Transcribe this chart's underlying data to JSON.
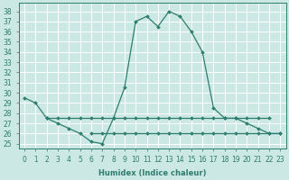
{
  "xlabel": "Humidex (Indice chaleur)",
  "background_color": "#cce8e4",
  "grid_color": "#ffffff",
  "line_color": "#2d7d6e",
  "x_values": [
    0,
    1,
    2,
    3,
    4,
    5,
    6,
    7,
    8,
    9,
    10,
    11,
    12,
    13,
    14,
    15,
    16,
    17,
    18,
    19,
    20,
    21,
    22,
    23
  ],
  "ylim": [
    24.5,
    38.8
  ],
  "xlim": [
    -0.5,
    23.5
  ],
  "yticks": [
    25,
    26,
    27,
    28,
    29,
    30,
    31,
    32,
    33,
    34,
    35,
    36,
    37,
    38
  ],
  "xticks": [
    0,
    1,
    2,
    3,
    4,
    5,
    6,
    7,
    8,
    9,
    10,
    11,
    12,
    13,
    14,
    15,
    16,
    17,
    18,
    19,
    20,
    21,
    22,
    23
  ],
  "series_main": [
    29.5,
    29.0,
    27.5,
    27.0,
    26.5,
    26.0,
    25.2,
    25.0,
    27.5,
    30.5,
    37.0,
    37.5,
    36.5,
    38.0,
    37.5,
    36.0,
    34.0,
    28.5,
    27.5,
    27.5,
    27.0,
    26.5,
    26.0,
    26.0
  ],
  "series_flat1_x": [
    2,
    3,
    4,
    5,
    6,
    7,
    8,
    9,
    10,
    11,
    12,
    13,
    14,
    15,
    16,
    17,
    18,
    19,
    20,
    21,
    22
  ],
  "series_flat1_y": [
    27.5,
    27.5,
    27.5,
    27.5,
    27.5,
    27.5,
    27.5,
    27.5,
    27.5,
    27.5,
    27.5,
    27.5,
    27.5,
    27.5,
    27.5,
    27.5,
    27.5,
    27.5,
    27.5,
    27.5,
    27.5
  ],
  "series_flat2_x": [
    6,
    7,
    8,
    9,
    10,
    11,
    12,
    13,
    14,
    15,
    16,
    17,
    18,
    19,
    20,
    21,
    22,
    23
  ],
  "series_flat2_y": [
    26.0,
    26.0,
    26.0,
    26.0,
    26.0,
    26.0,
    26.0,
    26.0,
    26.0,
    26.0,
    26.0,
    26.0,
    26.0,
    26.0,
    26.0,
    26.0,
    26.0,
    26.0
  ],
  "tick_fontsize": 5.5,
  "xlabel_fontsize": 6.0,
  "marker": "D",
  "markersize": 2.0,
  "linewidth": 0.9
}
